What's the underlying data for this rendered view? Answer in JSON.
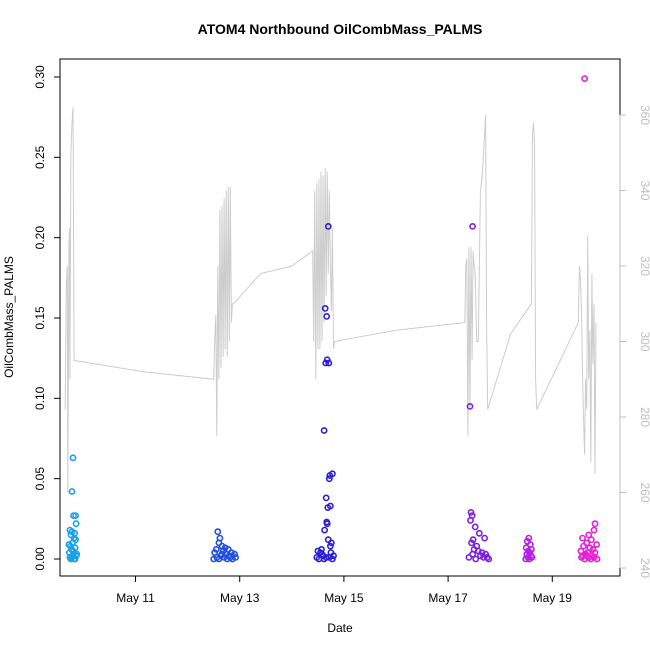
{
  "chart_data": {
    "type": "scatter",
    "title": "ATOM4 Northbound OilCombMass_PALMS",
    "xlabel": "Date",
    "ylabel": "OilCombMass_PALMS",
    "ylim": [
      0.0,
      0.3
    ],
    "y_ticks": [
      "0.00",
      "0.05",
      "0.10",
      "0.15",
      "0.20",
      "0.25",
      "0.30"
    ],
    "y2lim": [
      240,
      360
    ],
    "y2_ticks": [
      "240",
      "260",
      "280",
      "300",
      "320",
      "340",
      "360"
    ],
    "xlim": [
      9.55,
      20.3
    ],
    "x_ticks": [
      {
        "day": 11,
        "label": "May 11"
      },
      {
        "day": 13,
        "label": "May 13"
      },
      {
        "day": 15,
        "label": "May 15"
      },
      {
        "day": 17,
        "label": "May 17"
      },
      {
        "day": 19,
        "label": "May 19"
      }
    ],
    "grid": false,
    "series": [
      {
        "color": "#1a9fe8",
        "points": [
          [
            9.8,
            0.063
          ],
          [
            9.78,
            0.042
          ],
          [
            9.74,
            0.018
          ],
          [
            9.78,
            0.017
          ],
          [
            9.83,
            0.016
          ],
          [
            9.76,
            0.015
          ],
          [
            9.82,
            0.013
          ],
          [
            9.85,
            0.027
          ],
          [
            9.86,
            0.022
          ],
          [
            9.81,
            0.027
          ],
          [
            9.79,
            0.01
          ],
          [
            9.72,
            0.009
          ],
          [
            9.75,
            0.008
          ],
          [
            9.84,
            0.007
          ],
          [
            9.77,
            0.006
          ],
          [
            9.8,
            0.005
          ],
          [
            9.73,
            0.004
          ],
          [
            9.81,
            0.003
          ],
          [
            9.86,
            0.002
          ],
          [
            9.74,
            0.001
          ],
          [
            9.78,
            0.001
          ],
          [
            9.82,
            0.0
          ],
          [
            9.76,
            0.0
          ],
          [
            9.84,
            0.0
          ],
          [
            9.79,
            0.002
          ],
          [
            9.87,
            0.003
          ],
          [
            9.85,
            0.012
          ]
        ]
      },
      {
        "color": "#1f4fe0",
        "points": [
          [
            12.58,
            0.017
          ],
          [
            12.62,
            0.013
          ],
          [
            12.6,
            0.01
          ],
          [
            12.66,
            0.008
          ],
          [
            12.72,
            0.007
          ],
          [
            12.55,
            0.006
          ],
          [
            12.78,
            0.006
          ],
          [
            12.68,
            0.005
          ],
          [
            12.84,
            0.004
          ],
          [
            12.52,
            0.004
          ],
          [
            12.9,
            0.003
          ],
          [
            12.74,
            0.003
          ],
          [
            12.64,
            0.002
          ],
          [
            12.8,
            0.002
          ],
          [
            12.56,
            0.001
          ],
          [
            12.7,
            0.001
          ],
          [
            12.86,
            0.0
          ],
          [
            12.6,
            0.0
          ],
          [
            12.76,
            0.0
          ],
          [
            12.92,
            0.001
          ],
          [
            12.5,
            0.0
          ],
          [
            12.82,
            0.001
          ],
          [
            12.66,
            0.003
          ]
        ]
      },
      {
        "color": "#2b1fd6",
        "points": [
          [
            14.7,
            0.207
          ],
          [
            14.64,
            0.156
          ],
          [
            14.67,
            0.151
          ],
          [
            14.68,
            0.124
          ],
          [
            14.65,
            0.122
          ],
          [
            14.71,
            0.122
          ],
          [
            14.62,
            0.08
          ],
          [
            14.78,
            0.053
          ],
          [
            14.73,
            0.052
          ],
          [
            14.72,
            0.05
          ],
          [
            14.66,
            0.038
          ],
          [
            14.69,
            0.032
          ],
          [
            14.74,
            0.033
          ],
          [
            14.67,
            0.023
          ],
          [
            14.68,
            0.022
          ],
          [
            14.63,
            0.018
          ],
          [
            14.7,
            0.012
          ],
          [
            14.76,
            0.01
          ],
          [
            14.74,
            0.008
          ],
          [
            14.5,
            0.005
          ],
          [
            14.55,
            0.004
          ],
          [
            14.58,
            0.003
          ],
          [
            14.6,
            0.002
          ],
          [
            14.66,
            0.001
          ],
          [
            14.72,
            0.001
          ],
          [
            14.78,
            0.0
          ],
          [
            14.52,
            0.0
          ],
          [
            14.62,
            0.0
          ],
          [
            14.8,
            0.002
          ],
          [
            14.48,
            0.001
          ],
          [
            14.57,
            0.006
          ],
          [
            14.75,
            0.004
          ]
        ]
      },
      {
        "color": "#7a1fe0",
        "points": [
          [
            17.47,
            0.207
          ],
          [
            17.42,
            0.095
          ],
          [
            17.44,
            0.029
          ],
          [
            17.46,
            0.027
          ],
          [
            17.43,
            0.024
          ],
          [
            17.52,
            0.02
          ],
          [
            17.6,
            0.016
          ],
          [
            17.7,
            0.013
          ],
          [
            17.48,
            0.012
          ],
          [
            17.45,
            0.01
          ],
          [
            17.55,
            0.008
          ],
          [
            17.5,
            0.006
          ],
          [
            17.58,
            0.005
          ],
          [
            17.65,
            0.004
          ],
          [
            17.72,
            0.003
          ],
          [
            17.62,
            0.002
          ],
          [
            17.68,
            0.001
          ],
          [
            17.75,
            0.001
          ],
          [
            17.4,
            0.001
          ],
          [
            17.53,
            0.0
          ],
          [
            17.78,
            0.0
          ],
          [
            17.47,
            0.003
          ]
        ]
      },
      {
        "color": "#b51fe6",
        "points": [
          [
            18.55,
            0.013
          ],
          [
            18.52,
            0.011
          ],
          [
            18.58,
            0.009
          ],
          [
            18.5,
            0.007
          ],
          [
            18.6,
            0.006
          ],
          [
            18.54,
            0.005
          ],
          [
            18.57,
            0.004
          ],
          [
            18.51,
            0.003
          ],
          [
            18.59,
            0.002
          ],
          [
            18.53,
            0.001
          ],
          [
            18.56,
            0.0
          ],
          [
            18.61,
            0.001
          ],
          [
            18.49,
            0.0
          ]
        ]
      },
      {
        "color": "#e61fd6",
        "points": [
          [
            19.62,
            0.299
          ],
          [
            19.82,
            0.022
          ],
          [
            19.8,
            0.018
          ],
          [
            19.7,
            0.015
          ],
          [
            19.58,
            0.013
          ],
          [
            19.75,
            0.012
          ],
          [
            19.66,
            0.01
          ],
          [
            19.85,
            0.009
          ],
          [
            19.6,
            0.008
          ],
          [
            19.72,
            0.007
          ],
          [
            19.78,
            0.006
          ],
          [
            19.55,
            0.005
          ],
          [
            19.68,
            0.004
          ],
          [
            19.82,
            0.004
          ],
          [
            19.64,
            0.003
          ],
          [
            19.76,
            0.002
          ],
          [
            19.58,
            0.002
          ],
          [
            19.7,
            0.001
          ],
          [
            19.8,
            0.001
          ],
          [
            19.62,
            0.0
          ],
          [
            19.74,
            0.0
          ],
          [
            19.86,
            0.0
          ],
          [
            19.56,
            0.001
          ],
          [
            19.66,
            0.002
          ]
        ]
      }
    ],
    "altitude_line": {
      "color": "#cccccc",
      "axis": "right",
      "points": [
        [
          9.65,
          282
        ],
        [
          9.67,
          315
        ],
        [
          9.69,
          320
        ],
        [
          9.7,
          260
        ],
        [
          9.72,
          325
        ],
        [
          9.73,
          330
        ],
        [
          9.74,
          290
        ],
        [
          9.76,
          350
        ],
        [
          9.78,
          358
        ],
        [
          9.8,
          362
        ],
        [
          9.82,
          295
        ],
        [
          11.15,
          292
        ],
        [
          12.5,
          290
        ],
        [
          12.52,
          300
        ],
        [
          12.54,
          307
        ],
        [
          12.56,
          275
        ],
        [
          12.58,
          320
        ],
        [
          12.6,
          290
        ],
        [
          12.62,
          335
        ],
        [
          12.64,
          293
        ],
        [
          12.66,
          336
        ],
        [
          12.68,
          296
        ],
        [
          12.7,
          338
        ],
        [
          12.72,
          298
        ],
        [
          12.74,
          340
        ],
        [
          12.76,
          296
        ],
        [
          12.78,
          341
        ],
        [
          12.8,
          300
        ],
        [
          12.82,
          341
        ],
        [
          12.84,
          305
        ],
        [
          12.86,
          310
        ],
        [
          12.88,
          310
        ],
        [
          13.4,
          318
        ],
        [
          14.0,
          320
        ],
        [
          14.4,
          324
        ],
        [
          14.42,
          300
        ],
        [
          14.44,
          340
        ],
        [
          14.46,
          290
        ],
        [
          14.48,
          342
        ],
        [
          14.5,
          298
        ],
        [
          14.52,
          343
        ],
        [
          14.54,
          298
        ],
        [
          14.56,
          345
        ],
        [
          14.58,
          300
        ],
        [
          14.6,
          344
        ],
        [
          14.62,
          305
        ],
        [
          14.64,
          346
        ],
        [
          14.66,
          312
        ],
        [
          14.68,
          345
        ],
        [
          14.7,
          318
        ],
        [
          14.72,
          340
        ],
        [
          14.74,
          320
        ],
        [
          14.76,
          308
        ],
        [
          14.78,
          330
        ],
        [
          14.8,
          298
        ],
        [
          14.82,
          300
        ],
        [
          16.0,
          303
        ],
        [
          17.32,
          305
        ],
        [
          17.34,
          320
        ],
        [
          17.36,
          322
        ],
        [
          17.38,
          275
        ],
        [
          17.4,
          325
        ],
        [
          17.42,
          282
        ],
        [
          17.44,
          325
        ],
        [
          17.46,
          295
        ],
        [
          17.48,
          324
        ],
        [
          17.5,
          320
        ],
        [
          17.52,
          318
        ],
        [
          17.55,
          300
        ],
        [
          17.58,
          300
        ],
        [
          17.62,
          340
        ],
        [
          17.64,
          342
        ],
        [
          17.66,
          345
        ],
        [
          17.68,
          350
        ],
        [
          17.7,
          355
        ],
        [
          17.72,
          360
        ],
        [
          17.74,
          305
        ],
        [
          17.76,
          282
        ],
        [
          18.2,
          302
        ],
        [
          18.6,
          310
        ],
        [
          18.62,
          355
        ],
        [
          18.64,
          358
        ],
        [
          18.66,
          352
        ],
        [
          18.68,
          290
        ],
        [
          18.7,
          282
        ],
        [
          19.5,
          305
        ],
        [
          19.52,
          320
        ],
        [
          19.54,
          317
        ],
        [
          19.56,
          308
        ],
        [
          19.58,
          292
        ],
        [
          19.6,
          280
        ],
        [
          19.62,
          270
        ],
        [
          19.64,
          290
        ],
        [
          19.66,
          282
        ],
        [
          19.68,
          328
        ],
        [
          19.7,
          290
        ],
        [
          19.72,
          303
        ],
        [
          19.74,
          268
        ],
        [
          19.76,
          318
        ],
        [
          19.78,
          294
        ],
        [
          19.8,
          310
        ],
        [
          19.82,
          265
        ],
        [
          19.84,
          305
        ]
      ]
    }
  }
}
